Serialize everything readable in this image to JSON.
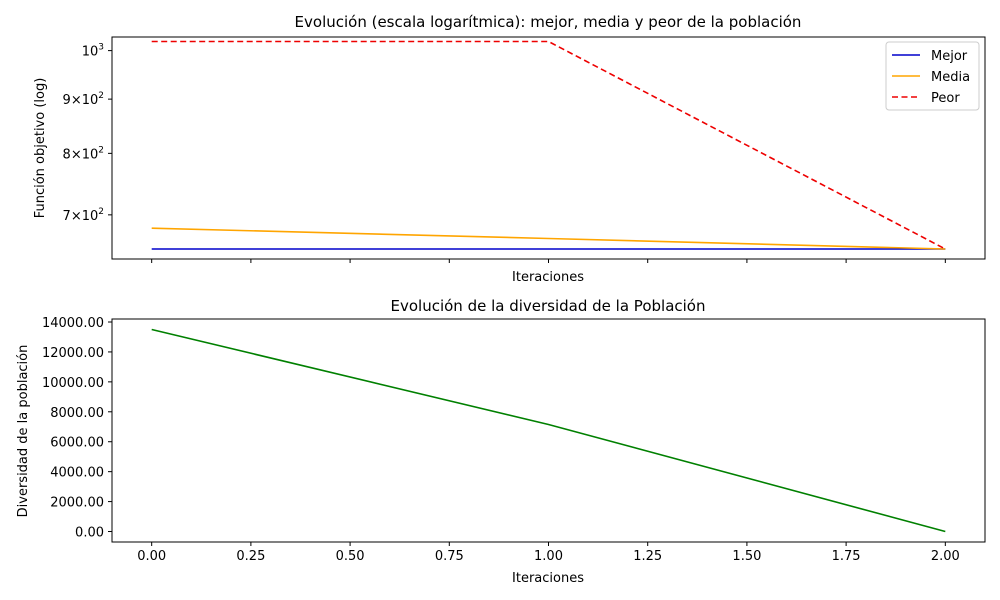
{
  "chart_data": [
    {
      "type": "line",
      "title": "Evolución (escala logarítmica): mejor, media y peor de la población",
      "xlabel": "Iteraciones",
      "ylabel": "Función objetivo (log)",
      "yscale": "log",
      "ylim": [
        636,
        1030
      ],
      "xlim": [
        -0.1,
        2.1
      ],
      "x_ticks": [
        0,
        0.25,
        0.5,
        0.75,
        1,
        1.25,
        1.5,
        1.75,
        2
      ],
      "y_ticks": [
        {
          "value": 700,
          "base": "7",
          "mult": "×",
          "ten": "10",
          "exp": "2"
        },
        {
          "value": 800,
          "base": "8",
          "mult": "×",
          "ten": "10",
          "exp": "2"
        },
        {
          "value": 900,
          "base": "9",
          "mult": "×",
          "ten": "10",
          "exp": "2"
        },
        {
          "value": 1000,
          "base": "",
          "mult": "",
          "ten": "10",
          "exp": "3"
        }
      ],
      "legend_position": "top-right",
      "series": [
        {
          "name": "Mejor",
          "color": "#0000cc",
          "style": "solid",
          "x": [
            0,
            1,
            2
          ],
          "y": [
            650,
            650,
            650
          ]
        },
        {
          "name": "Media",
          "color": "#ffa500",
          "style": "solid",
          "x": [
            0,
            1,
            2
          ],
          "y": [
            680,
            665,
            650
          ]
        },
        {
          "name": "Peor",
          "color": "#ee0000",
          "style": "dashed",
          "x": [
            0,
            1,
            2
          ],
          "y": [
            1020,
            1020,
            650
          ]
        }
      ]
    },
    {
      "type": "line",
      "title": "Evolución de la diversidad de la Población",
      "xlabel": "Iteraciones",
      "ylabel": "Diversidad de la población",
      "ylim": [
        -700,
        14200
      ],
      "xlim": [
        -0.1,
        2.1
      ],
      "x_ticks": [
        0,
        0.25,
        0.5,
        0.75,
        1,
        1.25,
        1.5,
        1.75,
        2
      ],
      "x_tick_labels": [
        "0.00",
        "0.25",
        "0.50",
        "0.75",
        "1.00",
        "1.25",
        "1.50",
        "1.75",
        "2.00"
      ],
      "y_ticks": [
        0,
        2000,
        4000,
        6000,
        8000,
        10000,
        12000,
        14000
      ],
      "y_tick_labels": [
        "0.00",
        "2000.00",
        "4000.00",
        "6000.00",
        "8000.00",
        "10000.00",
        "12000.00",
        "14000.00"
      ],
      "series": [
        {
          "color": "#008000",
          "style": "solid",
          "x": [
            0,
            1,
            2
          ],
          "y": [
            13500,
            7150,
            0
          ]
        }
      ]
    }
  ]
}
